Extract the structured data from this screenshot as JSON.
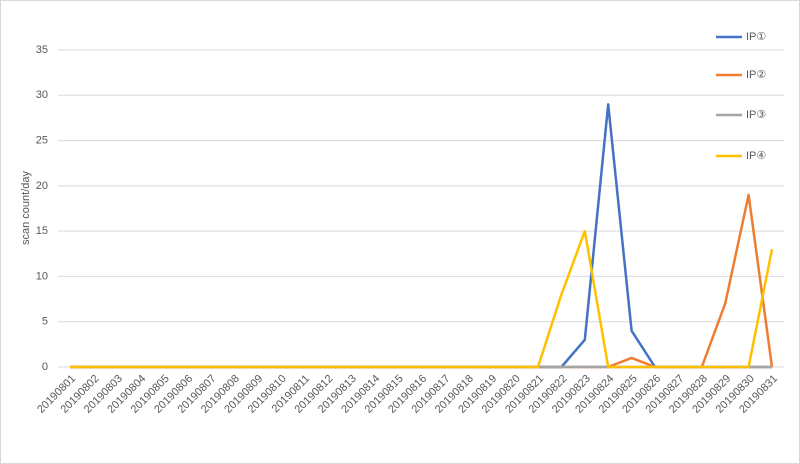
{
  "chart_data": {
    "type": "line",
    "y_label": "scan count/day",
    "categories": [
      "20190801",
      "20190802",
      "20190803",
      "20190804",
      "20190805",
      "20190806",
      "20190807",
      "20190808",
      "20190809",
      "20190810",
      "20190811",
      "20190812",
      "20190813",
      "20190814",
      "20190815",
      "20190816",
      "20190817",
      "20190818",
      "20190819",
      "20190820",
      "20190821",
      "20190822",
      "20190823",
      "20190824",
      "20190825",
      "20190826",
      "20190827",
      "20190828",
      "20190829",
      "20190830",
      "20190831"
    ],
    "series": [
      {
        "name": "IP①",
        "color": "#4472c4",
        "values": [
          0,
          0,
          0,
          0,
          0,
          0,
          0,
          0,
          0,
          0,
          0,
          0,
          0,
          0,
          0,
          0,
          0,
          0,
          0,
          0,
          0,
          0,
          3,
          29,
          4,
          0,
          0,
          0,
          0,
          0,
          0
        ]
      },
      {
        "name": "IP②",
        "color": "#ed7d31",
        "values": [
          0,
          0,
          0,
          0,
          0,
          0,
          0,
          0,
          0,
          0,
          0,
          0,
          0,
          0,
          0,
          0,
          0,
          0,
          0,
          0,
          0,
          0,
          0,
          0,
          1,
          0,
          0,
          0,
          7,
          19,
          0
        ]
      },
      {
        "name": "IP③",
        "color": "#a5a5a5",
        "values": [
          0,
          0,
          0,
          0,
          0,
          0,
          0,
          0,
          0,
          0,
          0,
          0,
          0,
          0,
          0,
          0,
          0,
          0,
          0,
          0,
          0,
          0,
          0,
          0,
          0,
          0,
          0,
          0,
          0,
          0,
          0
        ]
      },
      {
        "name": "IP④",
        "color": "#ffc000",
        "values": [
          0,
          0,
          0,
          0,
          0,
          0,
          0,
          0,
          0,
          0,
          0,
          0,
          0,
          0,
          0,
          0,
          0,
          0,
          0,
          0,
          0,
          8,
          15,
          0,
          0,
          0,
          0,
          0,
          0,
          0,
          13
        ]
      }
    ],
    "ylim": [
      0,
      35
    ],
    "yticks": [
      0,
      5,
      10,
      15,
      20,
      25,
      30,
      35
    ],
    "grid": true,
    "legend": "right"
  }
}
